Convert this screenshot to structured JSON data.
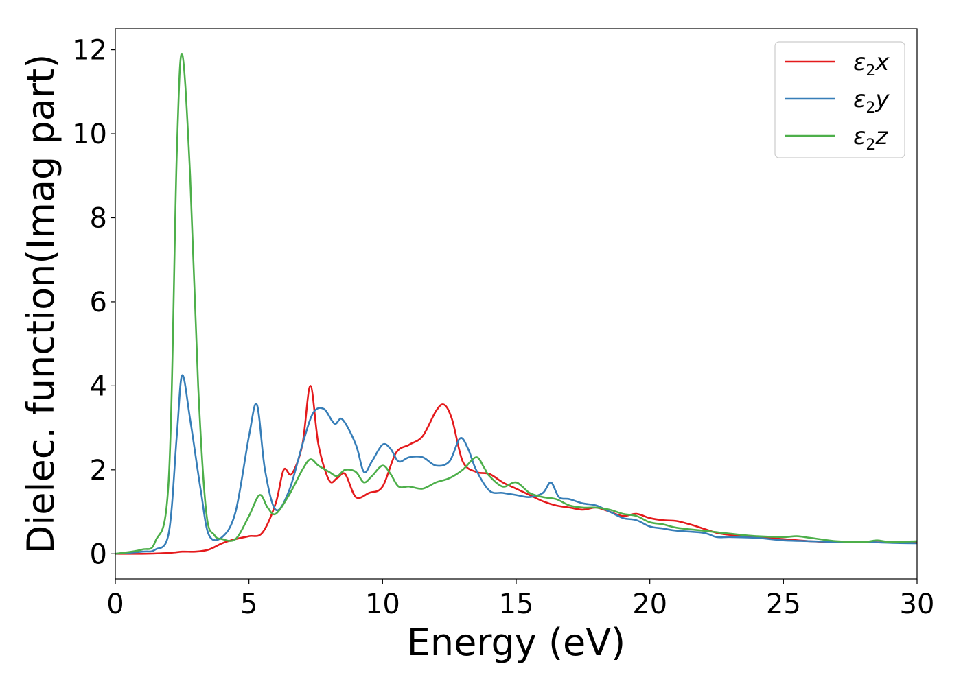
{
  "chart_data": {
    "type": "line",
    "title": "",
    "xlabel": "Energy (eV)",
    "ylabel": "Dielec. function(Imag part)",
    "xlim": [
      0,
      30
    ],
    "ylim": [
      -0.6,
      12.5
    ],
    "xticks": [
      0,
      5,
      10,
      15,
      20,
      25,
      30
    ],
    "xtick_labels": [
      "0",
      "5",
      "10",
      "15",
      "20",
      "25",
      "30"
    ],
    "yticks": [
      0,
      2,
      4,
      6,
      8,
      10,
      12
    ],
    "ytick_labels": [
      "0",
      "2",
      "4",
      "6",
      "8",
      "10",
      "12"
    ],
    "grid": false,
    "legend_position": "top-right",
    "series": [
      {
        "name": "ε2x",
        "legend_symbol": "ε",
        "legend_sub": "2",
        "legend_var": "x",
        "color": "#e41a1c",
        "points": [
          [
            0,
            0
          ],
          [
            1,
            0
          ],
          [
            2,
            0.02
          ],
          [
            2.5,
            0.05
          ],
          [
            3,
            0.05
          ],
          [
            3.5,
            0.1
          ],
          [
            4,
            0.25
          ],
          [
            4.5,
            0.35
          ],
          [
            5,
            0.42
          ],
          [
            5.5,
            0.5
          ],
          [
            6,
            1.2
          ],
          [
            6.3,
            2.0
          ],
          [
            6.6,
            1.9
          ],
          [
            7,
            2.6
          ],
          [
            7.3,
            4.0
          ],
          [
            7.6,
            2.6
          ],
          [
            8,
            1.75
          ],
          [
            8.3,
            1.8
          ],
          [
            8.6,
            1.9
          ],
          [
            9,
            1.35
          ],
          [
            9.5,
            1.45
          ],
          [
            10,
            1.6
          ],
          [
            10.5,
            2.4
          ],
          [
            11,
            2.6
          ],
          [
            11.5,
            2.8
          ],
          [
            12,
            3.4
          ],
          [
            12.3,
            3.55
          ],
          [
            12.6,
            3.2
          ],
          [
            13,
            2.2
          ],
          [
            13.5,
            1.95
          ],
          [
            14,
            1.9
          ],
          [
            14.5,
            1.7
          ],
          [
            15,
            1.55
          ],
          [
            15.5,
            1.4
          ],
          [
            16,
            1.25
          ],
          [
            16.5,
            1.15
          ],
          [
            17,
            1.1
          ],
          [
            17.5,
            1.05
          ],
          [
            18,
            1.1
          ],
          [
            18.5,
            1.0
          ],
          [
            19,
            0.9
          ],
          [
            19.5,
            0.95
          ],
          [
            20,
            0.85
          ],
          [
            20.5,
            0.8
          ],
          [
            21,
            0.78
          ],
          [
            21.5,
            0.7
          ],
          [
            22,
            0.6
          ],
          [
            22.5,
            0.5
          ],
          [
            23,
            0.45
          ],
          [
            24,
            0.4
          ],
          [
            25,
            0.35
          ],
          [
            26,
            0.3
          ],
          [
            27,
            0.28
          ],
          [
            28,
            0.28
          ],
          [
            29,
            0.27
          ],
          [
            30,
            0.28
          ]
        ]
      },
      {
        "name": "ε2y",
        "legend_symbol": "ε",
        "legend_sub": "2",
        "legend_var": "y",
        "color": "#377eb8",
        "points": [
          [
            0,
            0
          ],
          [
            1,
            0.05
          ],
          [
            1.5,
            0.1
          ],
          [
            2,
            0.5
          ],
          [
            2.3,
            2.8
          ],
          [
            2.5,
            4.25
          ],
          [
            2.8,
            3.2
          ],
          [
            3.2,
            1.5
          ],
          [
            3.5,
            0.45
          ],
          [
            4,
            0.4
          ],
          [
            4.5,
            1.0
          ],
          [
            5,
            2.8
          ],
          [
            5.3,
            3.55
          ],
          [
            5.6,
            2.0
          ],
          [
            6,
            1.05
          ],
          [
            6.5,
            1.5
          ],
          [
            7,
            2.6
          ],
          [
            7.4,
            3.35
          ],
          [
            7.8,
            3.45
          ],
          [
            8.2,
            3.1
          ],
          [
            8.5,
            3.2
          ],
          [
            9,
            2.6
          ],
          [
            9.3,
            1.95
          ],
          [
            9.6,
            2.2
          ],
          [
            10,
            2.6
          ],
          [
            10.3,
            2.5
          ],
          [
            10.6,
            2.2
          ],
          [
            11,
            2.3
          ],
          [
            11.5,
            2.3
          ],
          [
            12,
            2.1
          ],
          [
            12.5,
            2.2
          ],
          [
            12.9,
            2.75
          ],
          [
            13.2,
            2.5
          ],
          [
            13.5,
            2.0
          ],
          [
            14,
            1.5
          ],
          [
            14.5,
            1.45
          ],
          [
            15,
            1.4
          ],
          [
            15.5,
            1.35
          ],
          [
            16,
            1.45
          ],
          [
            16.3,
            1.7
          ],
          [
            16.6,
            1.35
          ],
          [
            17,
            1.3
          ],
          [
            17.5,
            1.2
          ],
          [
            18,
            1.15
          ],
          [
            18.5,
            1.0
          ],
          [
            19,
            0.85
          ],
          [
            19.5,
            0.8
          ],
          [
            20,
            0.65
          ],
          [
            20.5,
            0.6
          ],
          [
            21,
            0.55
          ],
          [
            22,
            0.5
          ],
          [
            22.5,
            0.4
          ],
          [
            23,
            0.4
          ],
          [
            24,
            0.38
          ],
          [
            25,
            0.32
          ],
          [
            26,
            0.3
          ],
          [
            27,
            0.28
          ],
          [
            28,
            0.28
          ],
          [
            29,
            0.26
          ],
          [
            30,
            0.25
          ]
        ]
      },
      {
        "name": "ε2z",
        "legend_symbol": "ε",
        "legend_sub": "2",
        "legend_var": "z",
        "color": "#4daf4a",
        "points": [
          [
            0,
            0
          ],
          [
            1,
            0.1
          ],
          [
            1.5,
            0.3
          ],
          [
            2,
            1.8
          ],
          [
            2.3,
            9.5
          ],
          [
            2.5,
            11.9
          ],
          [
            2.8,
            9.0
          ],
          [
            3.1,
            4.0
          ],
          [
            3.4,
            1.0
          ],
          [
            3.7,
            0.45
          ],
          [
            4,
            0.35
          ],
          [
            4.5,
            0.35
          ],
          [
            5,
            0.9
          ],
          [
            5.4,
            1.4
          ],
          [
            5.7,
            1.1
          ],
          [
            6,
            0.95
          ],
          [
            6.5,
            1.4
          ],
          [
            7,
            2.0
          ],
          [
            7.3,
            2.25
          ],
          [
            7.6,
            2.1
          ],
          [
            8,
            1.95
          ],
          [
            8.3,
            1.85
          ],
          [
            8.6,
            2.0
          ],
          [
            9,
            1.95
          ],
          [
            9.3,
            1.7
          ],
          [
            9.6,
            1.85
          ],
          [
            10,
            2.1
          ],
          [
            10.3,
            1.9
          ],
          [
            10.6,
            1.6
          ],
          [
            11,
            1.6
          ],
          [
            11.5,
            1.55
          ],
          [
            12,
            1.7
          ],
          [
            12.5,
            1.8
          ],
          [
            13,
            2.0
          ],
          [
            13.5,
            2.3
          ],
          [
            13.8,
            2.05
          ],
          [
            14,
            1.85
          ],
          [
            14.5,
            1.6
          ],
          [
            15,
            1.7
          ],
          [
            15.5,
            1.45
          ],
          [
            16,
            1.35
          ],
          [
            16.5,
            1.3
          ],
          [
            17,
            1.15
          ],
          [
            17.5,
            1.1
          ],
          [
            18,
            1.1
          ],
          [
            18.5,
            1.05
          ],
          [
            19,
            0.95
          ],
          [
            19.5,
            0.9
          ],
          [
            20,
            0.75
          ],
          [
            20.5,
            0.7
          ],
          [
            21,
            0.62
          ],
          [
            22,
            0.55
          ],
          [
            23,
            0.48
          ],
          [
            24,
            0.42
          ],
          [
            25,
            0.4
          ],
          [
            25.5,
            0.42
          ],
          [
            26,
            0.38
          ],
          [
            27,
            0.3
          ],
          [
            28,
            0.28
          ],
          [
            28.5,
            0.32
          ],
          [
            29,
            0.28
          ],
          [
            30,
            0.3
          ]
        ]
      }
    ]
  }
}
